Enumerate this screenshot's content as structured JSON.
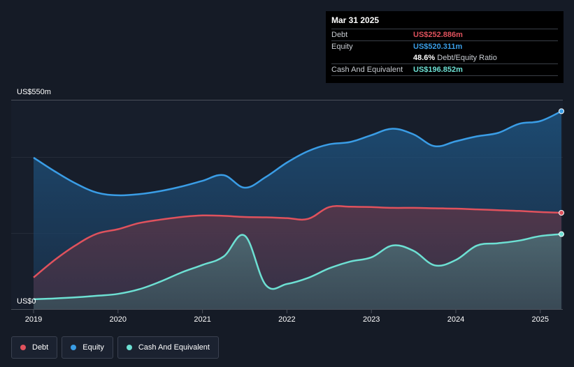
{
  "tooltip": {
    "date": "Mar 31 2025",
    "rows": [
      {
        "label": "Debt",
        "value": "US$252.886m",
        "color": "#e0525d"
      },
      {
        "label": "Equity",
        "value": "US$520.311m",
        "color": "#3a9de6"
      },
      {
        "label": "",
        "value": "48.6%",
        "suffix": "Debt/Equity Ratio",
        "color": "#ffffff"
      },
      {
        "label": "Cash And Equivalent",
        "value": "US$196.852m",
        "color": "#6de0d3"
      }
    ]
  },
  "legend": [
    {
      "label": "Debt",
      "color": "#e0525d"
    },
    {
      "label": "Equity",
      "color": "#3a9de6"
    },
    {
      "label": "Cash And Equivalent",
      "color": "#6de0d3"
    }
  ],
  "chart_data": {
    "type": "area",
    "y_top_label": "US$550m",
    "y_bottom_label": "US$0",
    "ylim": [
      0,
      550
    ],
    "xlim": [
      2019.0,
      2025.25
    ],
    "x_ticks": [
      "2019",
      "2020",
      "2021",
      "2022",
      "2023",
      "2024",
      "2025"
    ],
    "grid": true,
    "series": [
      {
        "name": "Equity",
        "color": "#3a9de6",
        "x": [
          2019.0,
          2019.25,
          2019.5,
          2019.75,
          2020.0,
          2020.25,
          2020.5,
          2020.75,
          2021.0,
          2021.25,
          2021.5,
          2021.75,
          2022.0,
          2022.25,
          2022.5,
          2022.75,
          2023.0,
          2023.25,
          2023.5,
          2023.75,
          2024.0,
          2024.25,
          2024.5,
          2024.75,
          2025.0,
          2025.25
        ],
        "values": [
          398,
          362,
          330,
          306,
          299,
          302,
          310,
          322,
          337,
          352,
          319,
          347,
          385,
          415,
          433,
          439,
          457,
          474,
          459,
          428,
          441,
          454,
          463,
          487,
          494,
          520
        ]
      },
      {
        "name": "Debt",
        "color": "#e0525d",
        "x": [
          2019.0,
          2019.25,
          2019.5,
          2019.75,
          2020.0,
          2020.25,
          2020.5,
          2020.75,
          2021.0,
          2021.25,
          2021.5,
          2021.75,
          2022.0,
          2022.25,
          2022.5,
          2022.75,
          2023.0,
          2023.25,
          2023.5,
          2023.75,
          2024.0,
          2024.25,
          2024.5,
          2024.75,
          2025.0,
          2025.25
        ],
        "values": [
          83,
          129,
          168,
          198,
          210,
          226,
          235,
          242,
          246,
          245,
          242,
          241,
          239,
          237,
          268,
          269,
          268,
          266,
          266,
          265,
          264,
          262,
          260,
          258,
          255,
          253
        ]
      },
      {
        "name": "Cash And Equivalent",
        "color": "#6de0d3",
        "x": [
          2019.0,
          2019.25,
          2019.5,
          2019.75,
          2020.0,
          2020.25,
          2020.5,
          2020.75,
          2021.0,
          2021.25,
          2021.5,
          2021.75,
          2022.0,
          2022.25,
          2022.5,
          2022.75,
          2023.0,
          2023.25,
          2023.5,
          2023.75,
          2024.0,
          2024.25,
          2024.5,
          2024.75,
          2025.0,
          2025.25
        ],
        "values": [
          26,
          28,
          31,
          35,
          40,
          52,
          72,
          96,
          116,
          138,
          193,
          63,
          66,
          82,
          107,
          125,
          136,
          167,
          153,
          115,
          129,
          167,
          173,
          180,
          192,
          197
        ]
      }
    ]
  }
}
